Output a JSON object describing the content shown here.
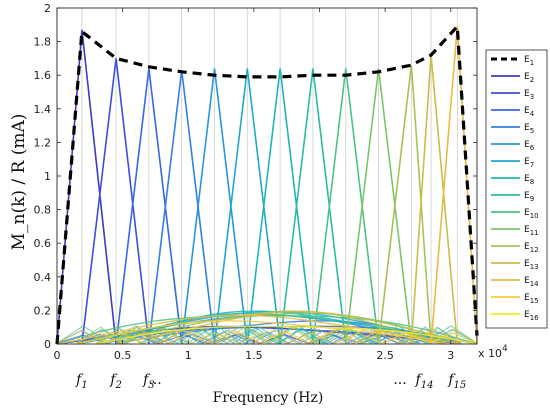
{
  "chart_data": {
    "type": "line",
    "xlabel": "Frequency (Hz)",
    "ylabel": "M_n(k) / R (mA)",
    "xlim": [
      0,
      32000
    ],
    "ylim": [
      0,
      2
    ],
    "x_ticks": [
      "0",
      "0.5",
      "1",
      "1.5",
      "2",
      "2.5",
      "3"
    ],
    "x_tick_values": [
      0,
      5000,
      10000,
      15000,
      20000,
      25000,
      30000
    ],
    "x_exponent": "x 10",
    "x_exponent_power": "4",
    "y_ticks": [
      "0",
      "0.2",
      "0.4",
      "0.6",
      "0.8",
      "1",
      "1.2",
      "1.4",
      "1.6",
      "1.8",
      "2"
    ],
    "y_tick_values": [
      0,
      0.2,
      0.4,
      0.6,
      0.8,
      1,
      1.2,
      1.4,
      1.6,
      1.8,
      2
    ],
    "grid": "vertical",
    "legend_placement": "right",
    "freq_markers": [
      {
        "sub": "1",
        "x": 1900
      },
      {
        "sub": "2",
        "x": 4500
      },
      {
        "sub": "3",
        "x": 7000
      },
      {
        "sub": "14",
        "x": 28000
      },
      {
        "sub": "15",
        "x": 30500
      }
    ],
    "ellipsis": "...",
    "envelope": {
      "name": "E",
      "sub": "1",
      "color": "#000000",
      "style": "dashed",
      "points": [
        [
          0,
          0
        ],
        [
          1900,
          1.86
        ],
        [
          4500,
          1.7
        ],
        [
          7000,
          1.65
        ],
        [
          9500,
          1.62
        ],
        [
          12000,
          1.6
        ],
        [
          14500,
          1.59
        ],
        [
          17000,
          1.59
        ],
        [
          19500,
          1.6
        ],
        [
          22000,
          1.6
        ],
        [
          24500,
          1.62
        ],
        [
          27000,
          1.66
        ],
        [
          28500,
          1.72
        ],
        [
          30500,
          1.89
        ],
        [
          32000,
          0.05
        ]
      ]
    },
    "peak_centers": [
      1900,
      4500,
      7000,
      9500,
      12000,
      14500,
      17000,
      19500,
      22000,
      24500,
      27000,
      28500,
      30500
    ],
    "peak_values": [
      1.87,
      1.7,
      1.64,
      1.63,
      1.64,
      1.64,
      1.64,
      1.64,
      1.64,
      1.64,
      1.66,
      1.72,
      1.89
    ],
    "series": [
      {
        "name": "E",
        "sub": "2",
        "color": "#3b3cbf"
      },
      {
        "name": "E",
        "sub": "3",
        "color": "#3c4fd8"
      },
      {
        "name": "E",
        "sub": "4",
        "color": "#3a67e3"
      },
      {
        "name": "E",
        "sub": "5",
        "color": "#347fe6"
      },
      {
        "name": "E",
        "sub": "6",
        "color": "#2b96dd"
      },
      {
        "name": "E",
        "sub": "7",
        "color": "#21a8cd"
      },
      {
        "name": "E",
        "sub": "8",
        "color": "#1db6b8"
      },
      {
        "name": "E",
        "sub": "9",
        "color": "#2cbd9f"
      },
      {
        "name": "E",
        "sub": "10",
        "color": "#4ec385"
      },
      {
        "name": "E",
        "sub": "11",
        "color": "#7cc56b"
      },
      {
        "name": "E",
        "sub": "12",
        "color": "#a6c258"
      },
      {
        "name": "E",
        "sub": "13",
        "color": "#cabd4c"
      },
      {
        "name": "E",
        "sub": "14",
        "color": "#e8b945"
      },
      {
        "name": "E",
        "sub": "15",
        "color": "#f7c93a"
      },
      {
        "name": "E",
        "sub": "16",
        "color": "#f9e625"
      }
    ],
    "low_curves_peak": 0.24
  }
}
